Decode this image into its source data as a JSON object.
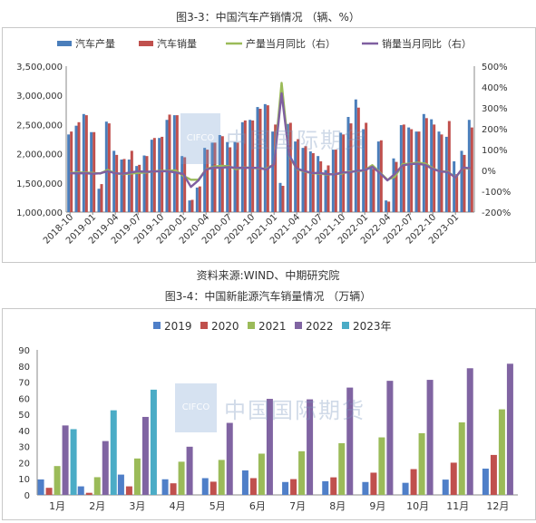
{
  "fig1_title": "图3-3：中国汽车产销情况 （辆、%）",
  "fig1_source": "资料来源:WIND、中期研究院",
  "fig2_title": "图3-4：中国新能源汽车销量情况 （万辆）",
  "watermark": {
    "box": "CIFCO",
    "text": "中国国际期货"
  },
  "colors": {
    "prod": "#4a7ebb",
    "sales": "#c0504d",
    "prod_yoy": "#9bbb59",
    "sales_yoy": "#7f5fa0",
    "y2019": "#4f7fc8",
    "y2020": "#c0504d",
    "y2021": "#9bbb59",
    "y2022": "#8064a2",
    "y2023": "#4bacc6"
  },
  "chart_data": [
    {
      "type": "bar",
      "title": "图3-3：中国汽车产销情况 （辆、%）",
      "legend_position": "top",
      "x_tick_labels": [
        "2018-10",
        "2019-01",
        "2019-04",
        "2019-07",
        "2019-10",
        "2020-01",
        "2020-04",
        "2020-07",
        "2020-10",
        "2021-01",
        "2021-04",
        "2021-07",
        "2021-10",
        "2022-01",
        "2022-04",
        "2022-07",
        "2022-10",
        "2023-01"
      ],
      "x": [
        "2018-10",
        "2018-11",
        "2018-12",
        "2019-01",
        "2019-02",
        "2019-03",
        "2019-04",
        "2019-05",
        "2019-06",
        "2019-07",
        "2019-08",
        "2019-09",
        "2019-10",
        "2019-11",
        "2019-12",
        "2020-01",
        "2020-02",
        "2020-03",
        "2020-04",
        "2020-05",
        "2020-06",
        "2020-07",
        "2020-08",
        "2020-09",
        "2020-10",
        "2020-11",
        "2020-12",
        "2021-01",
        "2021-02",
        "2021-03",
        "2021-04",
        "2021-05",
        "2021-06",
        "2021-07",
        "2021-08",
        "2021-09",
        "2021-10",
        "2021-11",
        "2021-12",
        "2022-01",
        "2022-02",
        "2022-03",
        "2022-04",
        "2022-05",
        "2022-06",
        "2022-07",
        "2022-08",
        "2022-09",
        "2022-10",
        "2022-11",
        "2022-12",
        "2023-01",
        "2023-02",
        "2023-03"
      ],
      "y_left": {
        "ticks": [
          "1,000,000",
          "1,500,000",
          "2,000,000",
          "2,500,000",
          "3,000,000",
          "3,500,000"
        ],
        "min": 1000000,
        "max": 3500000
      },
      "y_right": {
        "ticks": [
          "-200%",
          "-100%",
          "0%",
          "100%",
          "200%",
          "300%",
          "400%",
          "500%"
        ],
        "min": -200,
        "max": 500
      },
      "series": [
        {
          "name": "汽车产量",
          "axis": "left",
          "kind": "bar",
          "values": [
            2330000,
            2480000,
            2680000,
            2370000,
            1400000,
            2550000,
            2050000,
            1900000,
            1900000,
            1790000,
            1970000,
            2240000,
            2270000,
            2580000,
            2660000,
            1960000,
            1200000,
            1420000,
            2100000,
            2190000,
            2320000,
            2200000,
            2200000,
            2540000,
            2580000,
            2800000,
            2850000,
            2380000,
            1500000,
            2510000,
            2210000,
            2100000,
            2040000,
            1960000,
            1720000,
            2070000,
            2360000,
            2630000,
            2930000,
            2420000,
            1800000,
            2210000,
            1200000,
            1920000,
            2490000,
            2450000,
            2380000,
            2680000,
            2590000,
            2380000,
            2290000,
            1870000,
            2050000,
            2580000
          ]
        },
        {
          "name": "汽车销量",
          "axis": "left",
          "kind": "bar",
          "values": [
            2380000,
            2540000,
            2660000,
            2370000,
            1480000,
            2520000,
            1980000,
            1910000,
            2050000,
            1810000,
            1960000,
            2270000,
            2290000,
            2670000,
            2660000,
            1940000,
            1210000,
            1440000,
            2070000,
            2190000,
            2300000,
            2110000,
            2190000,
            2570000,
            2570000,
            2770000,
            2830000,
            2500000,
            1450000,
            2530000,
            2250000,
            2130000,
            2010000,
            1870000,
            1800000,
            2070000,
            2330000,
            2520000,
            2790000,
            2530000,
            1740000,
            2230000,
            1180000,
            1860000,
            2500000,
            2420000,
            2380000,
            2610000,
            2500000,
            2330000,
            2560000,
            1650000,
            1980000,
            2450000
          ]
        },
        {
          "name": "产量当月同比（右）",
          "axis": "right",
          "kind": "line",
          "values": [
            -12,
            -10,
            -10,
            -12,
            -15,
            2,
            -14,
            -18,
            -15,
            -12,
            -10,
            -5,
            -2,
            -2,
            0,
            -26,
            -45,
            -45,
            5,
            18,
            22,
            20,
            6,
            15,
            12,
            10,
            8,
            30,
            420,
            70,
            7,
            -5,
            -13,
            -15,
            -20,
            -18,
            -15,
            -5,
            -4,
            0,
            25,
            -10,
            -45,
            -30,
            30,
            32,
            37,
            33,
            10,
            -5,
            -5,
            -35,
            12,
            8
          ]
        },
        {
          "name": "销量当月同比（右）",
          "axis": "right",
          "kind": "line",
          "values": [
            -14,
            -14,
            -13,
            -16,
            -14,
            -4,
            -14,
            -16,
            -10,
            -4,
            -7,
            -5,
            -4,
            -4,
            -10,
            -18,
            -79,
            -48,
            4,
            14,
            12,
            16,
            12,
            13,
            12,
            12,
            4,
            30,
            370,
            74,
            9,
            -3,
            -12,
            -12,
            -18,
            -19,
            -10,
            -9,
            -2,
            1,
            18,
            -12,
            -48,
            -16,
            24,
            30,
            32,
            26,
            7,
            -5,
            -8,
            -35,
            14,
            10
          ]
        }
      ]
    },
    {
      "type": "bar",
      "title": "图3-4：中国新能源汽车销量情况 （万辆）",
      "legend_position": "top",
      "categories": [
        "1月",
        "2月",
        "3月",
        "4月",
        "5月",
        "6月",
        "7月",
        "8月",
        "9月",
        "10月",
        "11月",
        "12月"
      ],
      "y_ticks": [
        "0",
        "10",
        "20",
        "30",
        "40",
        "50",
        "60",
        "70",
        "80",
        "90"
      ],
      "ylim": [
        0,
        90
      ],
      "series": [
        {
          "name": "2019",
          "values": [
            9.6,
            5.3,
            12.6,
            9.7,
            10.4,
            15.2,
            8.0,
            8.5,
            8.0,
            7.5,
            9.5,
            16.3
          ]
        },
        {
          "name": "2020",
          "values": [
            4.4,
            1.3,
            5.3,
            7.2,
            8.2,
            10.4,
            9.8,
            10.9,
            13.8,
            16.0,
            20.0,
            24.8
          ]
        },
        {
          "name": "2021",
          "values": [
            17.9,
            11.0,
            22.6,
            20.6,
            21.7,
            25.6,
            27.1,
            32.1,
            35.7,
            38.3,
            45.0,
            53.1
          ]
        },
        {
          "name": "2022",
          "values": [
            43.1,
            33.4,
            48.4,
            29.9,
            44.7,
            59.6,
            59.3,
            66.6,
            70.8,
            71.4,
            78.6,
            81.4
          ]
        },
        {
          "name": "2023年",
          "values": [
            40.8,
            52.5,
            65.3,
            null,
            null,
            null,
            null,
            null,
            null,
            null,
            null,
            null
          ]
        }
      ]
    }
  ]
}
